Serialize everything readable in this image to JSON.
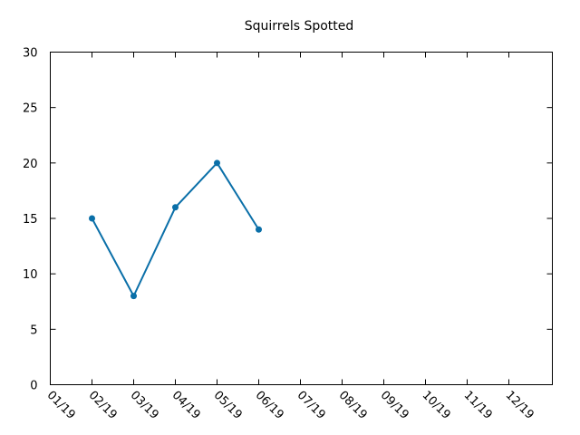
{
  "chart_data": {
    "type": "line",
    "title": "Squirrels Spotted",
    "xlabel": "",
    "ylabel": "",
    "x_ticks": [
      "01/19",
      "02/19",
      "03/19",
      "04/19",
      "05/19",
      "06/19",
      "07/19",
      "08/19",
      "09/19",
      "10/19",
      "11/19",
      "12/19"
    ],
    "y_ticks": [
      0,
      5,
      10,
      15,
      20,
      25,
      30
    ],
    "ylim": [
      0,
      30
    ],
    "grid": false,
    "series": [
      {
        "color": "#0a6fa8",
        "x": [
          "02/19",
          "03/19",
          "04/19",
          "05/19",
          "06/19"
        ],
        "values": [
          15,
          8,
          16,
          20,
          14
        ]
      }
    ]
  }
}
